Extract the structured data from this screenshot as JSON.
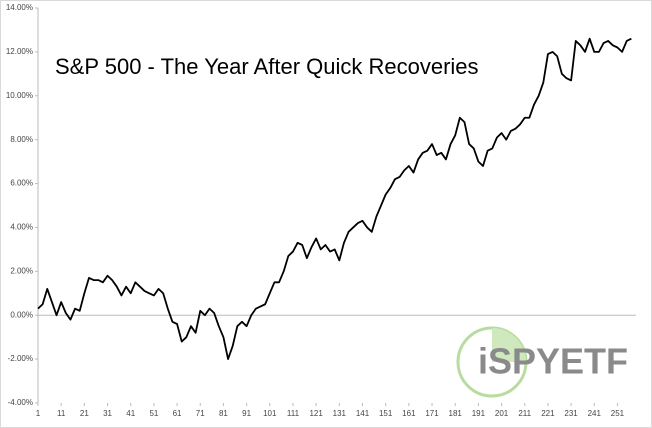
{
  "chart_data": {
    "type": "line",
    "title": "S&P 500 - The Year After Quick Recoveries",
    "watermark": "iSPYETF",
    "x": [
      1,
      3,
      5,
      7,
      9,
      11,
      13,
      15,
      17,
      19,
      21,
      23,
      25,
      27,
      29,
      31,
      33,
      35,
      37,
      39,
      41,
      43,
      45,
      47,
      49,
      51,
      53,
      55,
      57,
      59,
      61,
      63,
      65,
      67,
      69,
      71,
      73,
      75,
      77,
      79,
      81,
      83,
      85,
      87,
      89,
      91,
      93,
      95,
      97,
      99,
      101,
      103,
      105,
      107,
      109,
      111,
      113,
      115,
      117,
      119,
      121,
      123,
      125,
      127,
      129,
      131,
      133,
      135,
      137,
      139,
      141,
      143,
      145,
      147,
      149,
      151,
      153,
      155,
      157,
      159,
      161,
      163,
      165,
      167,
      169,
      171,
      173,
      175,
      177,
      179,
      181,
      183,
      185,
      187,
      189,
      191,
      193,
      195,
      197,
      199,
      201,
      203,
      205,
      207,
      209,
      211,
      213,
      215,
      217,
      219,
      221,
      223,
      225,
      227,
      229,
      231,
      233,
      235,
      237,
      239,
      241,
      243,
      245,
      247,
      249,
      251,
      253,
      255,
      257
    ],
    "series": [
      {
        "color": "#000000",
        "values": [
          0.3,
          0.5,
          1.2,
          0.6,
          0.0,
          0.6,
          0.1,
          -0.2,
          0.3,
          0.2,
          1.0,
          1.7,
          1.6,
          1.6,
          1.5,
          1.8,
          1.6,
          1.3,
          0.9,
          1.3,
          1.0,
          1.5,
          1.3,
          1.1,
          1.0,
          0.9,
          1.2,
          1.0,
          0.3,
          -0.3,
          -0.4,
          -1.2,
          -1.0,
          -0.5,
          -0.8,
          0.2,
          0.0,
          0.3,
          0.1,
          -0.5,
          -1.0,
          -2.0,
          -1.4,
          -0.5,
          -0.3,
          -0.5,
          0.0,
          0.3,
          0.4,
          0.5,
          1.0,
          1.5,
          1.5,
          2.0,
          2.7,
          2.9,
          3.3,
          3.2,
          2.6,
          3.1,
          3.5,
          3.0,
          3.2,
          2.9,
          3.0,
          2.5,
          3.3,
          3.8,
          4.0,
          4.2,
          4.3,
          4.0,
          3.8,
          4.5,
          5.0,
          5.5,
          5.8,
          6.2,
          6.3,
          6.6,
          6.8,
          6.5,
          7.1,
          7.4,
          7.5,
          7.8,
          7.3,
          7.4,
          7.1,
          7.8,
          8.2,
          9.0,
          8.8,
          7.8,
          7.6,
          7.0,
          6.8,
          7.5,
          7.6,
          8.1,
          8.3,
          8.0,
          8.4,
          8.5,
          8.7,
          9.0,
          9.0,
          9.6,
          10.0,
          10.6,
          11.9,
          12.0,
          11.8,
          11.0,
          10.8,
          10.7,
          12.5,
          12.3,
          12.0,
          12.6,
          12.0,
          12.0,
          12.4,
          12.5,
          12.3,
          12.2,
          12.0,
          12.5,
          12.6
        ]
      }
    ],
    "xlim": [
      1,
      259
    ],
    "xticks": [
      1,
      11,
      21,
      31,
      41,
      51,
      61,
      71,
      81,
      91,
      101,
      111,
      121,
      131,
      141,
      151,
      161,
      171,
      181,
      191,
      201,
      211,
      221,
      231,
      241,
      251
    ],
    "ylim": [
      -4,
      14
    ],
    "yticks": [
      {
        "value": -4,
        "label": "-4.00%"
      },
      {
        "value": -2,
        "label": "-2.00%"
      },
      {
        "value": 0,
        "label": "0.00%"
      },
      {
        "value": 2,
        "label": "2.00%"
      },
      {
        "value": 4,
        "label": "4.00%"
      },
      {
        "value": 6,
        "label": "6.00%"
      },
      {
        "value": 8,
        "label": "8.00%"
      },
      {
        "value": 10,
        "label": "10.00%"
      },
      {
        "value": 12,
        "label": "12.00%"
      },
      {
        "value": 14,
        "label": "14.00%"
      }
    ]
  }
}
